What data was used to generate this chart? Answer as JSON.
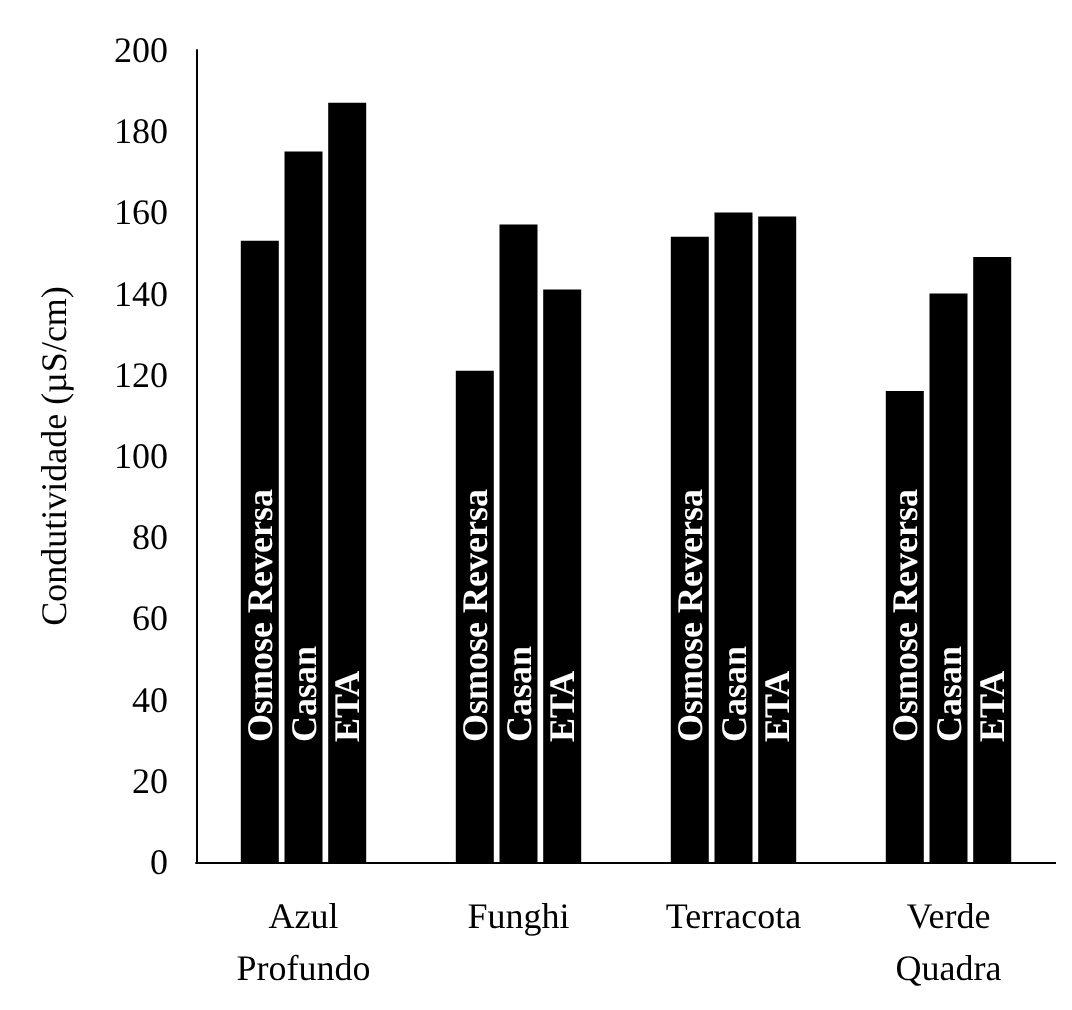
{
  "chart_data": {
    "type": "bar",
    "ylabel": "Condutividade (µS/cm)",
    "categories": [
      "Azul Profundo",
      "Funghi",
      "Terracota",
      "Verde Quadra"
    ],
    "series": [
      {
        "name": "Osmose Reversa",
        "color": "#000000",
        "values": [
          153,
          121,
          154,
          116
        ]
      },
      {
        "name": "Casan",
        "color": "#000000",
        "values": [
          175,
          157,
          160,
          140
        ]
      },
      {
        "name": "ETA",
        "color": "#000000",
        "values": [
          187,
          141,
          159,
          149
        ]
      }
    ],
    "ylim": [
      0,
      200
    ],
    "yticks": [
      0,
      20,
      40,
      60,
      80,
      100,
      120,
      140,
      160,
      180,
      200
    ],
    "grid": false,
    "legend": false
  }
}
